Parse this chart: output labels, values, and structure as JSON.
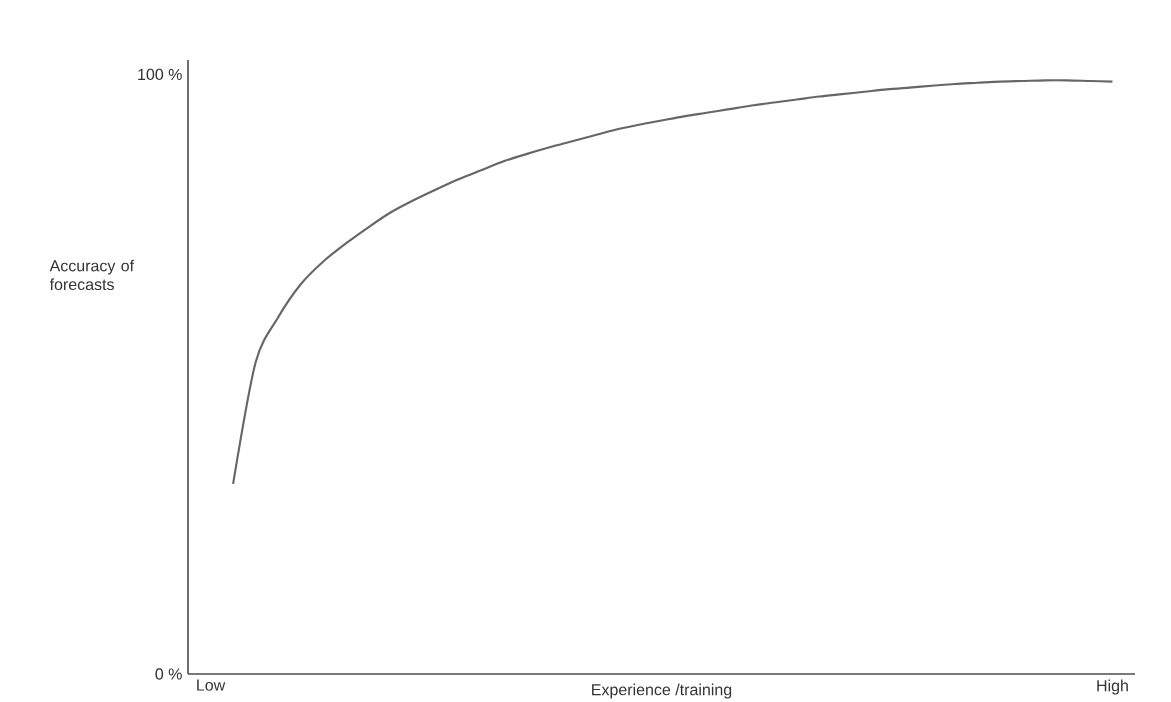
{
  "chart_data": {
    "type": "line",
    "xlabel": "Experience /training",
    "ylabel": "Accuracy of forecasts",
    "categories": [
      "Low",
      null,
      null,
      null,
      null,
      null,
      null,
      null,
      null,
      null,
      null,
      null,
      null,
      null,
      null,
      null,
      null,
      null,
      null,
      null,
      null,
      null,
      null,
      null,
      null,
      null,
      null,
      null,
      null,
      null,
      null,
      null,
      null,
      null,
      null,
      null,
      null,
      null,
      null,
      null,
      "High"
    ],
    "series": [
      {
        "color": "#666666",
        "values": [
          null,
          31.7,
          52,
          59.5,
          65,
          68.8,
          71.8,
          74.5,
          77,
          79,
          80.8,
          82.5,
          84,
          85.5,
          86.7,
          87.8,
          88.8,
          89.8,
          90.8,
          91.6,
          92.3,
          93,
          93.6,
          94.2,
          94.8,
          95.3,
          95.8,
          96.3,
          96.7,
          97.1,
          97.5,
          97.8,
          98.1,
          98.4,
          98.6,
          98.8,
          98.9,
          99,
          99,
          98.9,
          98.8
        ]
      }
    ],
    "ylim": [
      0,
      102.4
    ],
    "yticks": [
      {
        "value": 0,
        "label": "0 %"
      },
      {
        "value": 100,
        "label": "100 %"
      }
    ],
    "marker": "none",
    "line_style": "solid"
  }
}
